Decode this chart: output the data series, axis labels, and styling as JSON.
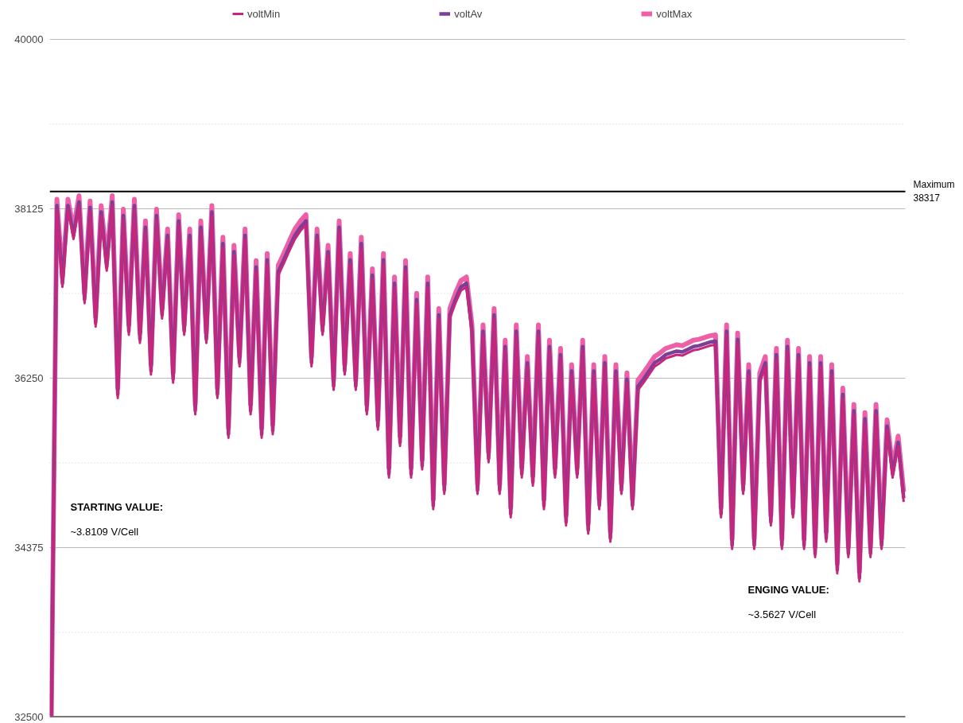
{
  "chart_data": {
    "type": "line",
    "categories": [
      null,
      null,
      null,
      null,
      null,
      null,
      null,
      null,
      null,
      null,
      null,
      null,
      null,
      null,
      null,
      null,
      null,
      null,
      null,
      null,
      null,
      null,
      null,
      null,
      null,
      null,
      null,
      null,
      null,
      null,
      null,
      null,
      null,
      null,
      null,
      null,
      null,
      null,
      null,
      null,
      null,
      null,
      null,
      null,
      null,
      null,
      null,
      null,
      null,
      null,
      null,
      null,
      null,
      null,
      null,
      null,
      null,
      null,
      null,
      null,
      null,
      null,
      null,
      null,
      null,
      null,
      null,
      null,
      null,
      null,
      null,
      null,
      null,
      null,
      null,
      null,
      null,
      null,
      null,
      null,
      null,
      null,
      null,
      null,
      null,
      null,
      null,
      null,
      null,
      null,
      null,
      null,
      null,
      null,
      null,
      null,
      null,
      null,
      null,
      null,
      null,
      null,
      null,
      null,
      null,
      null,
      null,
      null,
      null,
      null,
      null,
      null,
      null,
      null,
      null,
      null,
      null,
      null,
      null,
      null,
      null,
      null,
      null,
      null,
      null,
      null,
      null,
      null,
      null,
      null,
      null,
      null,
      null,
      null,
      null,
      null,
      null,
      null,
      null,
      null,
      null,
      null,
      null,
      null,
      null,
      null,
      null,
      null,
      null,
      null,
      null,
      null,
      null,
      null,
      null
    ],
    "series": [
      {
        "name": "voltMin",
        "color": "#c8267a",
        "values": [
          32510,
          38120,
          37260,
          38120,
          37790,
          38160,
          37080,
          38100,
          36820,
          38050,
          37440,
          38160,
          36030,
          38010,
          36730,
          38120,
          36640,
          37880,
          36290,
          38010,
          36910,
          37790,
          36200,
          37950,
          36730,
          37790,
          35850,
          37880,
          36640,
          38050,
          36030,
          37700,
          35590,
          37610,
          36380,
          37790,
          35850,
          37440,
          35590,
          37520,
          35630,
          37390,
          37520,
          37660,
          37790,
          37880,
          37950,
          36380,
          37790,
          36730,
          37610,
          36120,
          37880,
          36290,
          37520,
          36120,
          37700,
          35850,
          37350,
          35680,
          37520,
          35150,
          37260,
          35500,
          37440,
          35150,
          37080,
          35240,
          37260,
          34800,
          36910,
          34970,
          36910,
          37080,
          37220,
          37260,
          36730,
          34970,
          36730,
          35320,
          36910,
          34970,
          36560,
          34710,
          36730,
          35150,
          36380,
          35060,
          36730,
          34800,
          36560,
          35150,
          36470,
          34620,
          36290,
          35150,
          36560,
          34530,
          36290,
          34800,
          36380,
          34440,
          36290,
          34970,
          36200,
          34800,
          36120,
          36200,
          36290,
          36380,
          36420,
          36470,
          36490,
          36510,
          36500,
          36530,
          36560,
          36570,
          36590,
          36610,
          36620,
          34710,
          36730,
          34360,
          36640,
          34970,
          36290,
          34360,
          36200,
          36380,
          34620,
          36470,
          34360,
          36560,
          34710,
          36470,
          34360,
          36380,
          34270,
          36380,
          34440,
          36290,
          34090,
          36030,
          34270,
          35850,
          34000,
          35760,
          34270,
          35850,
          34360,
          35680,
          35150,
          35500,
          34880
        ]
      },
      {
        "name": "voltAv",
        "color": "#7b3f98",
        "values": [
          32510,
          38160,
          37300,
          38160,
          37830,
          38200,
          37120,
          38140,
          36860,
          38090,
          37480,
          38200,
          36070,
          38050,
          36770,
          38160,
          36680,
          37920,
          36330,
          38050,
          36950,
          37830,
          36240,
          37990,
          36770,
          37830,
          35890,
          37920,
          36680,
          38090,
          36070,
          37740,
          35630,
          37650,
          36420,
          37830,
          35890,
          37480,
          35630,
          37560,
          35670,
          37430,
          37560,
          37700,
          37830,
          37920,
          37990,
          36420,
          37830,
          36770,
          37650,
          36160,
          37920,
          36330,
          37560,
          36160,
          37740,
          35890,
          37390,
          35720,
          37560,
          35190,
          37300,
          35540,
          37480,
          35190,
          37120,
          35280,
          37300,
          34840,
          36950,
          35010,
          36950,
          37120,
          37260,
          37300,
          36770,
          35010,
          36770,
          35360,
          36950,
          35010,
          36600,
          34750,
          36770,
          35190,
          36420,
          35100,
          36770,
          34840,
          36600,
          35190,
          36510,
          34660,
          36330,
          35190,
          36600,
          34570,
          36330,
          34840,
          36420,
          34480,
          36330,
          35010,
          36240,
          34840,
          36160,
          36240,
          36330,
          36420,
          36460,
          36510,
          36530,
          36550,
          36540,
          36570,
          36600,
          36610,
          36630,
          36650,
          36660,
          34750,
          36770,
          34400,
          36680,
          35010,
          36330,
          34400,
          36240,
          36420,
          34660,
          36510,
          34400,
          36600,
          34750,
          36510,
          34400,
          36420,
          34310,
          36420,
          34480,
          36330,
          34130,
          36070,
          34310,
          35890,
          34040,
          35800,
          34310,
          35890,
          34400,
          35720,
          35190,
          35540,
          34920
        ]
      },
      {
        "name": "voltMax",
        "color": "#ee5fa7",
        "values": [
          32510,
          38230,
          37370,
          38230,
          37900,
          38270,
          37190,
          38210,
          36930,
          38160,
          37550,
          38270,
          36140,
          38120,
          36840,
          38230,
          36750,
          37990,
          36400,
          38120,
          37020,
          37900,
          36310,
          38060,
          36840,
          37900,
          35960,
          37990,
          36750,
          38160,
          36140,
          37810,
          35700,
          37720,
          36490,
          37900,
          35960,
          37550,
          35700,
          37630,
          35740,
          37500,
          37630,
          37770,
          37900,
          37990,
          38060,
          36490,
          37900,
          36840,
          37720,
          36230,
          37990,
          36400,
          37630,
          36230,
          37810,
          35960,
          37460,
          35790,
          37630,
          35260,
          37370,
          35610,
          37550,
          35260,
          37190,
          35350,
          37370,
          34910,
          37020,
          35080,
          37020,
          37190,
          37330,
          37370,
          36840,
          35080,
          36840,
          35430,
          37020,
          35080,
          36670,
          34820,
          36840,
          35260,
          36490,
          35170,
          36840,
          34910,
          36670,
          35260,
          36580,
          34730,
          36400,
          35260,
          36670,
          34640,
          36400,
          34910,
          36490,
          34550,
          36400,
          35080,
          36310,
          34910,
          36230,
          36310,
          36400,
          36490,
          36530,
          36580,
          36600,
          36620,
          36610,
          36640,
          36670,
          36680,
          36700,
          36720,
          36730,
          34820,
          36840,
          34470,
          36750,
          35080,
          36400,
          34470,
          36310,
          36490,
          34730,
          36580,
          34470,
          36670,
          34820,
          36580,
          34470,
          36490,
          34380,
          36490,
          34550,
          36400,
          34200,
          36140,
          34380,
          35960,
          34110,
          35870,
          34380,
          35960,
          34470,
          35790,
          35260,
          35610,
          34990
        ]
      }
    ],
    "ylim": [
      32500,
      40000
    ],
    "yticks": [
      32500,
      {
        "value": 33437.5,
        "label": null
      },
      34375,
      {
        "value": 35312.5,
        "label": null
      },
      36250,
      {
        "value": 37187.5,
        "label": null
      },
      38125,
      {
        "value": 39062.5,
        "label": null
      },
      40000
    ],
    "tick_labels": "y",
    "grid": "y",
    "legend": "top",
    "line_style": "solid",
    "marker": "none",
    "ref_lines": [
      {
        "axis": "y",
        "value": 38317,
        "label": "Maximum\n38317",
        "color": "#000000"
      }
    ],
    "annotations": [
      "STARTING VALUE:",
      "~3.8109 V/Cell",
      "ENGING VALUE:",
      "~3.5627 V/Cell"
    ]
  }
}
